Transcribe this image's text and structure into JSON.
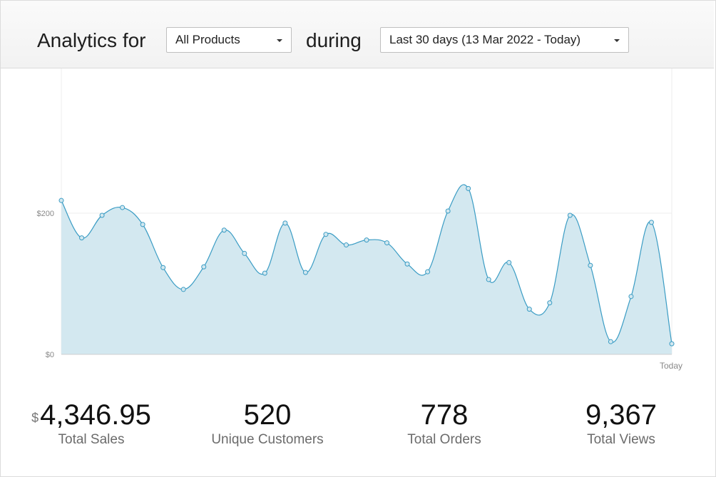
{
  "header": {
    "prefix": "Analytics for",
    "product_select": "All Products",
    "middle": "during",
    "range_select": "Last 30 days (13 Mar 2022 - Today)"
  },
  "chart_data": {
    "type": "area",
    "title": "",
    "xlabel": "",
    "ylabel": "",
    "y_ticks": [
      "$0",
      "$200"
    ],
    "x_end_label": "Today",
    "ylim": [
      0,
      400
    ],
    "grid": true,
    "color": "#3a9cc4",
    "fill": "#d3e8f0",
    "x": [
      1,
      2,
      3,
      4,
      5,
      6,
      7,
      8,
      9,
      10,
      11,
      12,
      13,
      14,
      15,
      16,
      17,
      18,
      19,
      20,
      21,
      22,
      23,
      24,
      25,
      26,
      27,
      28,
      29,
      30,
      31
    ],
    "values": [
      218,
      165,
      197,
      208,
      184,
      123,
      92,
      124,
      176,
      143,
      115,
      186,
      116,
      170,
      155,
      162,
      158,
      128,
      117,
      203,
      235,
      106,
      130,
      64,
      73,
      197,
      126,
      18,
      82,
      187,
      15
    ]
  },
  "stats": [
    {
      "currency": "$",
      "value": "4,346.95",
      "label": "Total Sales"
    },
    {
      "value": "520",
      "label": "Unique Customers"
    },
    {
      "value": "778",
      "label": "Total Orders"
    },
    {
      "value": "9,367",
      "label": "Total Views"
    }
  ]
}
